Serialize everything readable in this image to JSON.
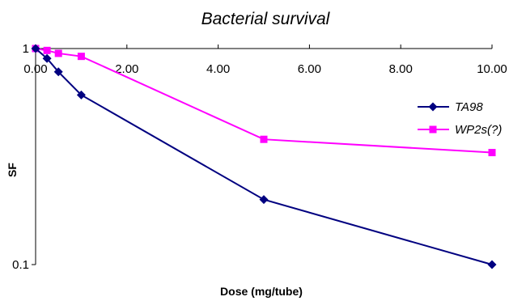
{
  "chart_data": {
    "type": "line",
    "title": "Bacterial survival",
    "xlabel": "Dose (mg/tube)",
    "ylabel": "SF",
    "x_axis": {
      "min": 0,
      "max": 10,
      "ticks": [
        0,
        2,
        4,
        6,
        8,
        10
      ],
      "tick_labels": [
        "0.00",
        "2.00",
        "4.00",
        "6.00",
        "8.00",
        "10.00"
      ],
      "position": "top"
    },
    "y_axis": {
      "scale": "log",
      "min": 0.1,
      "max": 1,
      "ticks": [
        0.1,
        1
      ],
      "tick_labels": [
        "0.1",
        "1"
      ]
    },
    "grid": false,
    "legend_position": "right",
    "series": [
      {
        "name": "TA98",
        "color": "#000080",
        "marker": "diamond",
        "x": [
          0,
          0.25,
          0.5,
          1,
          5,
          10
        ],
        "y": [
          1.0,
          0.9,
          0.78,
          0.61,
          0.2,
          0.1
        ]
      },
      {
        "name": "WP2s(?)",
        "color": "#FF00FF",
        "marker": "square",
        "x": [
          0,
          0.25,
          0.5,
          1,
          5,
          10
        ],
        "y": [
          1.0,
          0.98,
          0.95,
          0.92,
          0.38,
          0.33
        ]
      }
    ]
  }
}
